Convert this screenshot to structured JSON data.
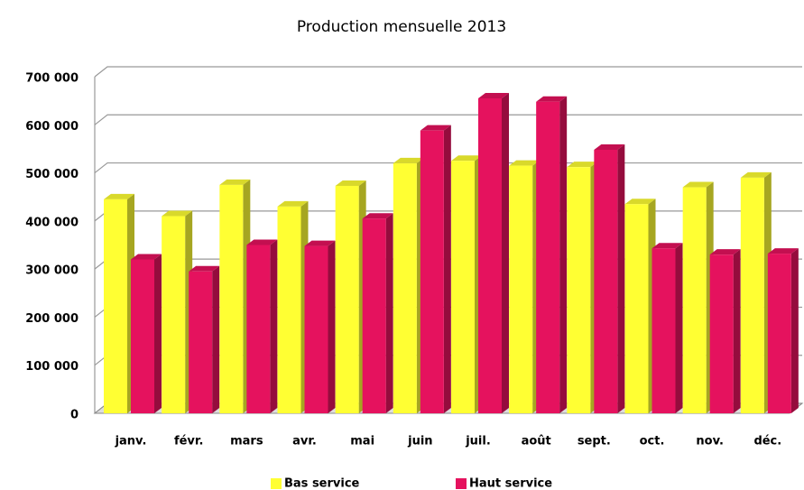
{
  "chart_data": {
    "type": "bar",
    "title": "Production mensuelle 2013",
    "categories": [
      "janv.",
      "févr.",
      "mars",
      "avr.",
      "mai",
      "juin",
      "juil.",
      "août",
      "sept.",
      "oct.",
      "nov.",
      "déc."
    ],
    "series": [
      {
        "name": "Bas service",
        "color": "#ffff33",
        "values": [
          445000,
          410000,
          475000,
          430000,
          473000,
          520000,
          525000,
          515000,
          512000,
          435000,
          470000,
          490000
        ]
      },
      {
        "name": "Haut service",
        "color": "#e5125e",
        "values": [
          320000,
          295000,
          350000,
          348000,
          405000,
          588000,
          655000,
          648000,
          548000,
          343000,
          330000,
          332000
        ]
      }
    ],
    "ylim": [
      0,
      700000
    ],
    "yticks": [
      {
        "value": 0,
        "label": "0"
      },
      {
        "value": 100000,
        "label": "100 000"
      },
      {
        "value": 200000,
        "label": "200 000"
      },
      {
        "value": 300000,
        "label": "300 000"
      },
      {
        "value": 400000,
        "label": "400 000"
      },
      {
        "value": 500000,
        "label": "500 000"
      },
      {
        "value": 600000,
        "label": "600 000"
      },
      {
        "value": 700000,
        "label": "700 000"
      }
    ],
    "grid": true
  }
}
